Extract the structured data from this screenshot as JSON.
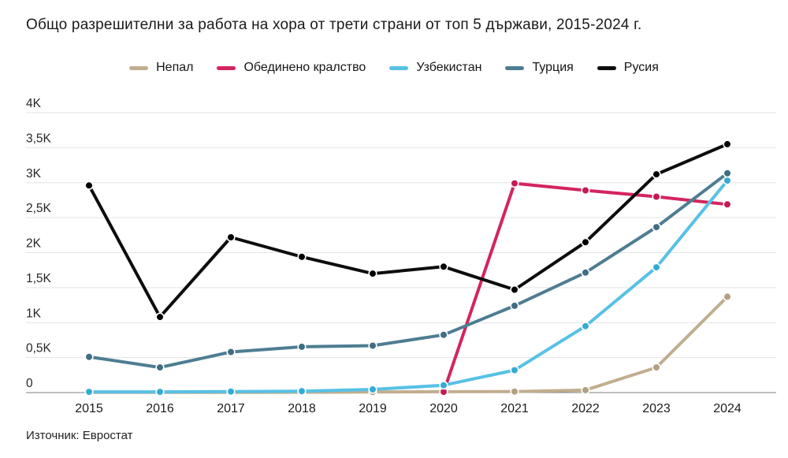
{
  "title": "Общо разрешителни за работа на хора от трети страни от топ 5 държави, 2015-2024 г.",
  "source": "Източник: Евростат",
  "chart_data": {
    "type": "line",
    "x": [
      2015,
      2016,
      2017,
      2018,
      2019,
      2020,
      2021,
      2022,
      2023,
      2024
    ],
    "series": [
      {
        "name": "Непал",
        "color": "#c1ae8f",
        "dot_color": "#b3a081",
        "values": [
          2,
          2,
          3,
          5,
          8,
          12,
          15,
          35,
          360,
          1370
        ]
      },
      {
        "name": "Обединено кралство",
        "color": "#d4245f",
        "dot_color": "#c51a51",
        "values": [
          null,
          null,
          null,
          null,
          null,
          10,
          2990,
          2890,
          2800,
          2690
        ]
      },
      {
        "name": "Узбекистан",
        "color": "#57c1e6",
        "dot_color": "#35abd4",
        "values": [
          10,
          10,
          15,
          20,
          45,
          105,
          320,
          950,
          1790,
          3030
        ]
      },
      {
        "name": "Турция",
        "color": "#4e7d92",
        "dot_color": "#3f6d84",
        "values": [
          510,
          360,
          580,
          655,
          670,
          825,
          1240,
          1715,
          2365,
          3135
        ]
      },
      {
        "name": "Русия",
        "color": "#0d0d0d",
        "dot_color": "#000000",
        "values": [
          2960,
          1080,
          2220,
          1940,
          1700,
          1800,
          1470,
          2150,
          3120,
          3550
        ]
      }
    ],
    "y_ticks": [
      {
        "value": 0,
        "label": "0"
      },
      {
        "value": 500,
        "label": "0,5K"
      },
      {
        "value": 1000,
        "label": "1K"
      },
      {
        "value": 1500,
        "label": "1,5K"
      },
      {
        "value": 2000,
        "label": "2K"
      },
      {
        "value": 2500,
        "label": "2,5K"
      },
      {
        "value": 3000,
        "label": "3K"
      },
      {
        "value": 3500,
        "label": "3,5K"
      },
      {
        "value": 4000,
        "label": "4K"
      }
    ],
    "ylim": [
      0,
      4000
    ],
    "grid": true,
    "legend_position": "top",
    "axis_colors": {
      "gridline": "#e4e4e4",
      "zero_line": "#7d7d7d"
    }
  }
}
